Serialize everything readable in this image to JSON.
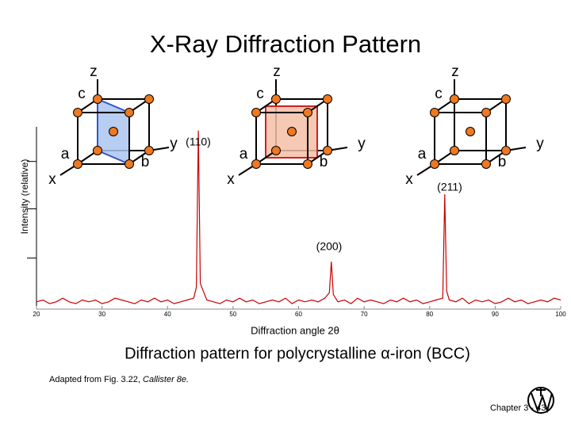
{
  "chart_data": {
    "type": "line",
    "title": "X-Ray  Diffraction Pattern",
    "x_label": "Diffraction angle 2θ",
    "y_label": "Intensity (relative)",
    "color": "#cc0000",
    "x": [
      20,
      21,
      22,
      23,
      24,
      25,
      26,
      27,
      28,
      29,
      30,
      31,
      32,
      33,
      34,
      35,
      36,
      37,
      38,
      39,
      40,
      41,
      42,
      43,
      44,
      44.4,
      44.7,
      45,
      46,
      47,
      48,
      49,
      50,
      51,
      52,
      53,
      54,
      55,
      56,
      57,
      58,
      59,
      60,
      61,
      62,
      63,
      64,
      64.7,
      65,
      65.3,
      66,
      67,
      68,
      69,
      70,
      71,
      72,
      73,
      74,
      75,
      76,
      77,
      78,
      79,
      80,
      81,
      82,
      82.3,
      82.6,
      83,
      84,
      85,
      86,
      87,
      88,
      89,
      90,
      91,
      92,
      93,
      94,
      95,
      96,
      97,
      98,
      99,
      100
    ],
    "values": [
      4,
      5,
      3,
      4,
      6,
      4,
      3,
      5,
      4,
      5,
      3,
      4,
      6,
      5,
      4,
      3,
      5,
      4,
      6,
      4,
      5,
      3,
      4,
      5,
      6,
      12,
      98,
      14,
      5,
      4,
      3,
      5,
      4,
      6,
      4,
      5,
      3,
      4,
      5,
      4,
      6,
      3,
      5,
      4,
      5,
      4,
      6,
      9,
      26,
      8,
      4,
      5,
      3,
      6,
      4,
      5,
      4,
      3,
      5,
      4,
      6,
      4,
      5,
      3,
      4,
      5,
      6,
      63,
      10,
      5,
      4,
      6,
      3,
      5,
      4,
      5,
      3,
      4,
      6,
      4,
      5,
      3,
      4,
      5,
      4,
      6,
      5
    ],
    "xlim": [
      20,
      100
    ],
    "xticks": [
      20,
      30,
      40,
      50,
      60,
      70,
      80,
      90,
      100
    ],
    "ylim": [
      0,
      100
    ],
    "yticks": [
      28,
      55,
      81
    ],
    "annotations": [
      "(110)",
      "(200)",
      "(211)"
    ]
  },
  "cubes": [
    {
      "axes": [
        "x",
        "y",
        "z"
      ],
      "edges": [
        "a",
        "b",
        "c"
      ]
    },
    {
      "axes": [
        "x",
        "y",
        "z"
      ],
      "edges": [
        "a",
        "b",
        "c"
      ]
    },
    {
      "axes": [
        "x",
        "y",
        "z"
      ],
      "edges": [
        "a",
        "b",
        "c"
      ]
    }
  ],
  "caption": "Diffraction pattern for polycrystalline  α-iron (BCC)",
  "source": {
    "text": "Adapted from Fig. 3.22, ",
    "book": "Callister 8e."
  },
  "footer": "Chapter 3 -  43"
}
